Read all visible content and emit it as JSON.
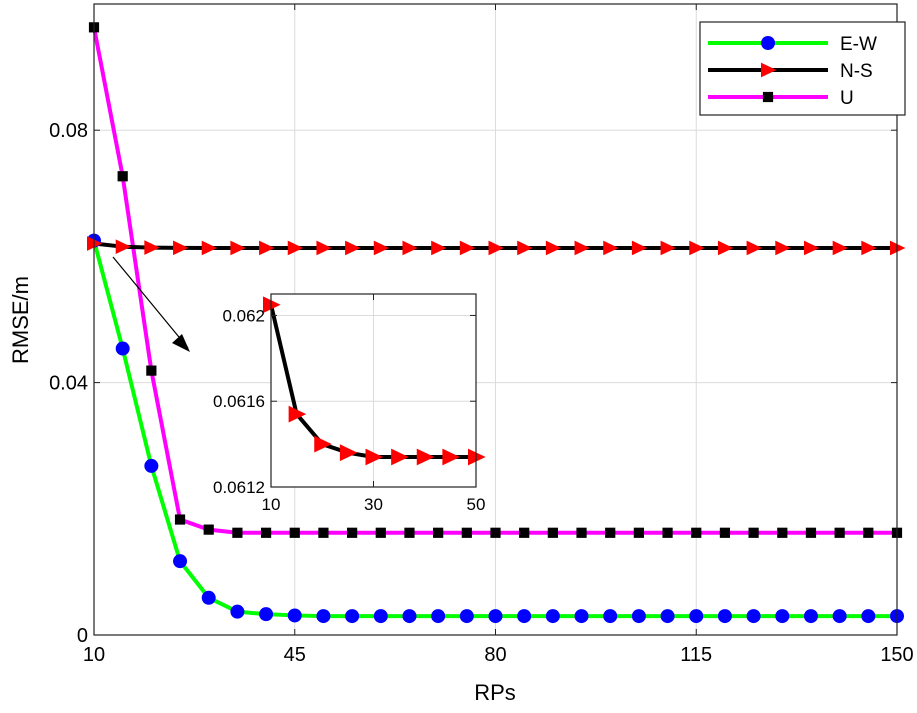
{
  "chart_data": {
    "type": "line",
    "title": "",
    "xlabel": "RPs",
    "ylabel": "RMSE/m",
    "xlim": [
      10,
      150
    ],
    "ylim": [
      0,
      0.1
    ],
    "xticks": [
      "10",
      "45",
      "80",
      "115",
      "150"
    ],
    "yticks": [
      "0",
      "0.04",
      "0.08"
    ],
    "grid": true,
    "legend_position": "top-right",
    "x": [
      10,
      15,
      20,
      25,
      30,
      35,
      40,
      45,
      50,
      55,
      60,
      65,
      70,
      75,
      80,
      85,
      90,
      95,
      100,
      105,
      110,
      115,
      120,
      125,
      130,
      135,
      140,
      145,
      150
    ],
    "series": [
      {
        "name": "E-W",
        "color": "#00ff00",
        "marker": "circle",
        "marker_color": "#0000ff",
        "values": [
          0.0625,
          0.0454,
          0.0268,
          0.0117,
          0.0059,
          0.0037,
          0.0033,
          0.0031,
          0.003,
          0.003,
          0.003,
          0.003,
          0.003,
          0.003,
          0.003,
          0.003,
          0.003,
          0.003,
          0.003,
          0.003,
          0.003,
          0.003,
          0.003,
          0.003,
          0.003,
          0.003,
          0.003,
          0.003,
          0.003
        ]
      },
      {
        "name": "N-S",
        "color": "#000000",
        "marker": "triangle-right",
        "marker_color": "#ff0000",
        "values": [
          0.06205,
          0.06154,
          0.0614,
          0.06136,
          0.06134,
          0.06134,
          0.06134,
          0.06134,
          0.06134,
          0.06134,
          0.06134,
          0.06134,
          0.06134,
          0.06134,
          0.06134,
          0.06134,
          0.06134,
          0.06134,
          0.06134,
          0.06134,
          0.06134,
          0.06134,
          0.06134,
          0.06134,
          0.06134,
          0.06134,
          0.06134,
          0.06134,
          0.06134
        ]
      },
      {
        "name": "U",
        "color": "#ff00ff",
        "marker": "square",
        "marker_color": "#000000",
        "values": [
          0.0963,
          0.0727,
          0.0419,
          0.0183,
          0.0167,
          0.0162,
          0.0162,
          0.0162,
          0.0162,
          0.0162,
          0.0162,
          0.0162,
          0.0162,
          0.0162,
          0.0162,
          0.0162,
          0.0162,
          0.0162,
          0.0162,
          0.0162,
          0.0162,
          0.0162,
          0.0162,
          0.0162,
          0.0162,
          0.0162,
          0.0162,
          0.0162,
          0.0162
        ]
      }
    ],
    "inset": {
      "series": "N-S",
      "xlim": [
        10,
        50
      ],
      "ylim": [
        0.0612,
        0.0621
      ],
      "xticks": [
        "10",
        "30",
        "50"
      ],
      "yticks": [
        "0.0612",
        "0.0616",
        "0.062"
      ]
    }
  }
}
